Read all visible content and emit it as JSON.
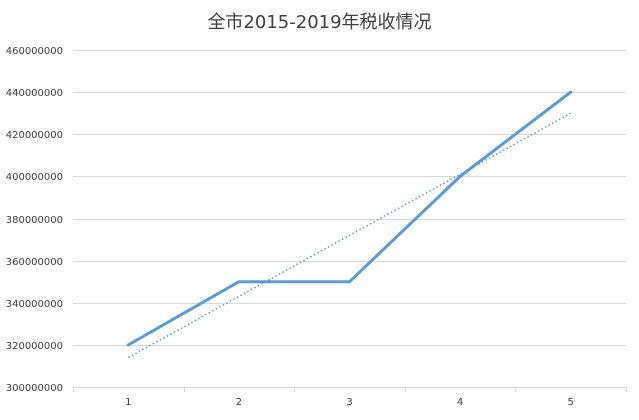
{
  "chart_data": {
    "type": "line",
    "title": "全市2015-2019年税收情况",
    "xlabel": "",
    "ylabel": "",
    "categories": [
      "1",
      "2",
      "3",
      "4",
      "5"
    ],
    "series": [
      {
        "values": [
          320000000,
          350000000,
          350000000,
          400000000,
          440000000
        ],
        "color": "#5b9bd5"
      }
    ],
    "trendline": {
      "type": "linear",
      "style": "dotted",
      "color": "#5b9bd5"
    },
    "ylim": [
      300000000,
      460000000
    ],
    "yticks": [
      300000000,
      320000000,
      340000000,
      360000000,
      380000000,
      400000000,
      420000000,
      440000000,
      460000000
    ],
    "ytick_labels": [
      "300000000",
      "320000000",
      "340000000",
      "360000000",
      "380000000",
      "400000000",
      "420000000",
      "440000000",
      "460000000"
    ],
    "grid": true,
    "legend": "none"
  }
}
